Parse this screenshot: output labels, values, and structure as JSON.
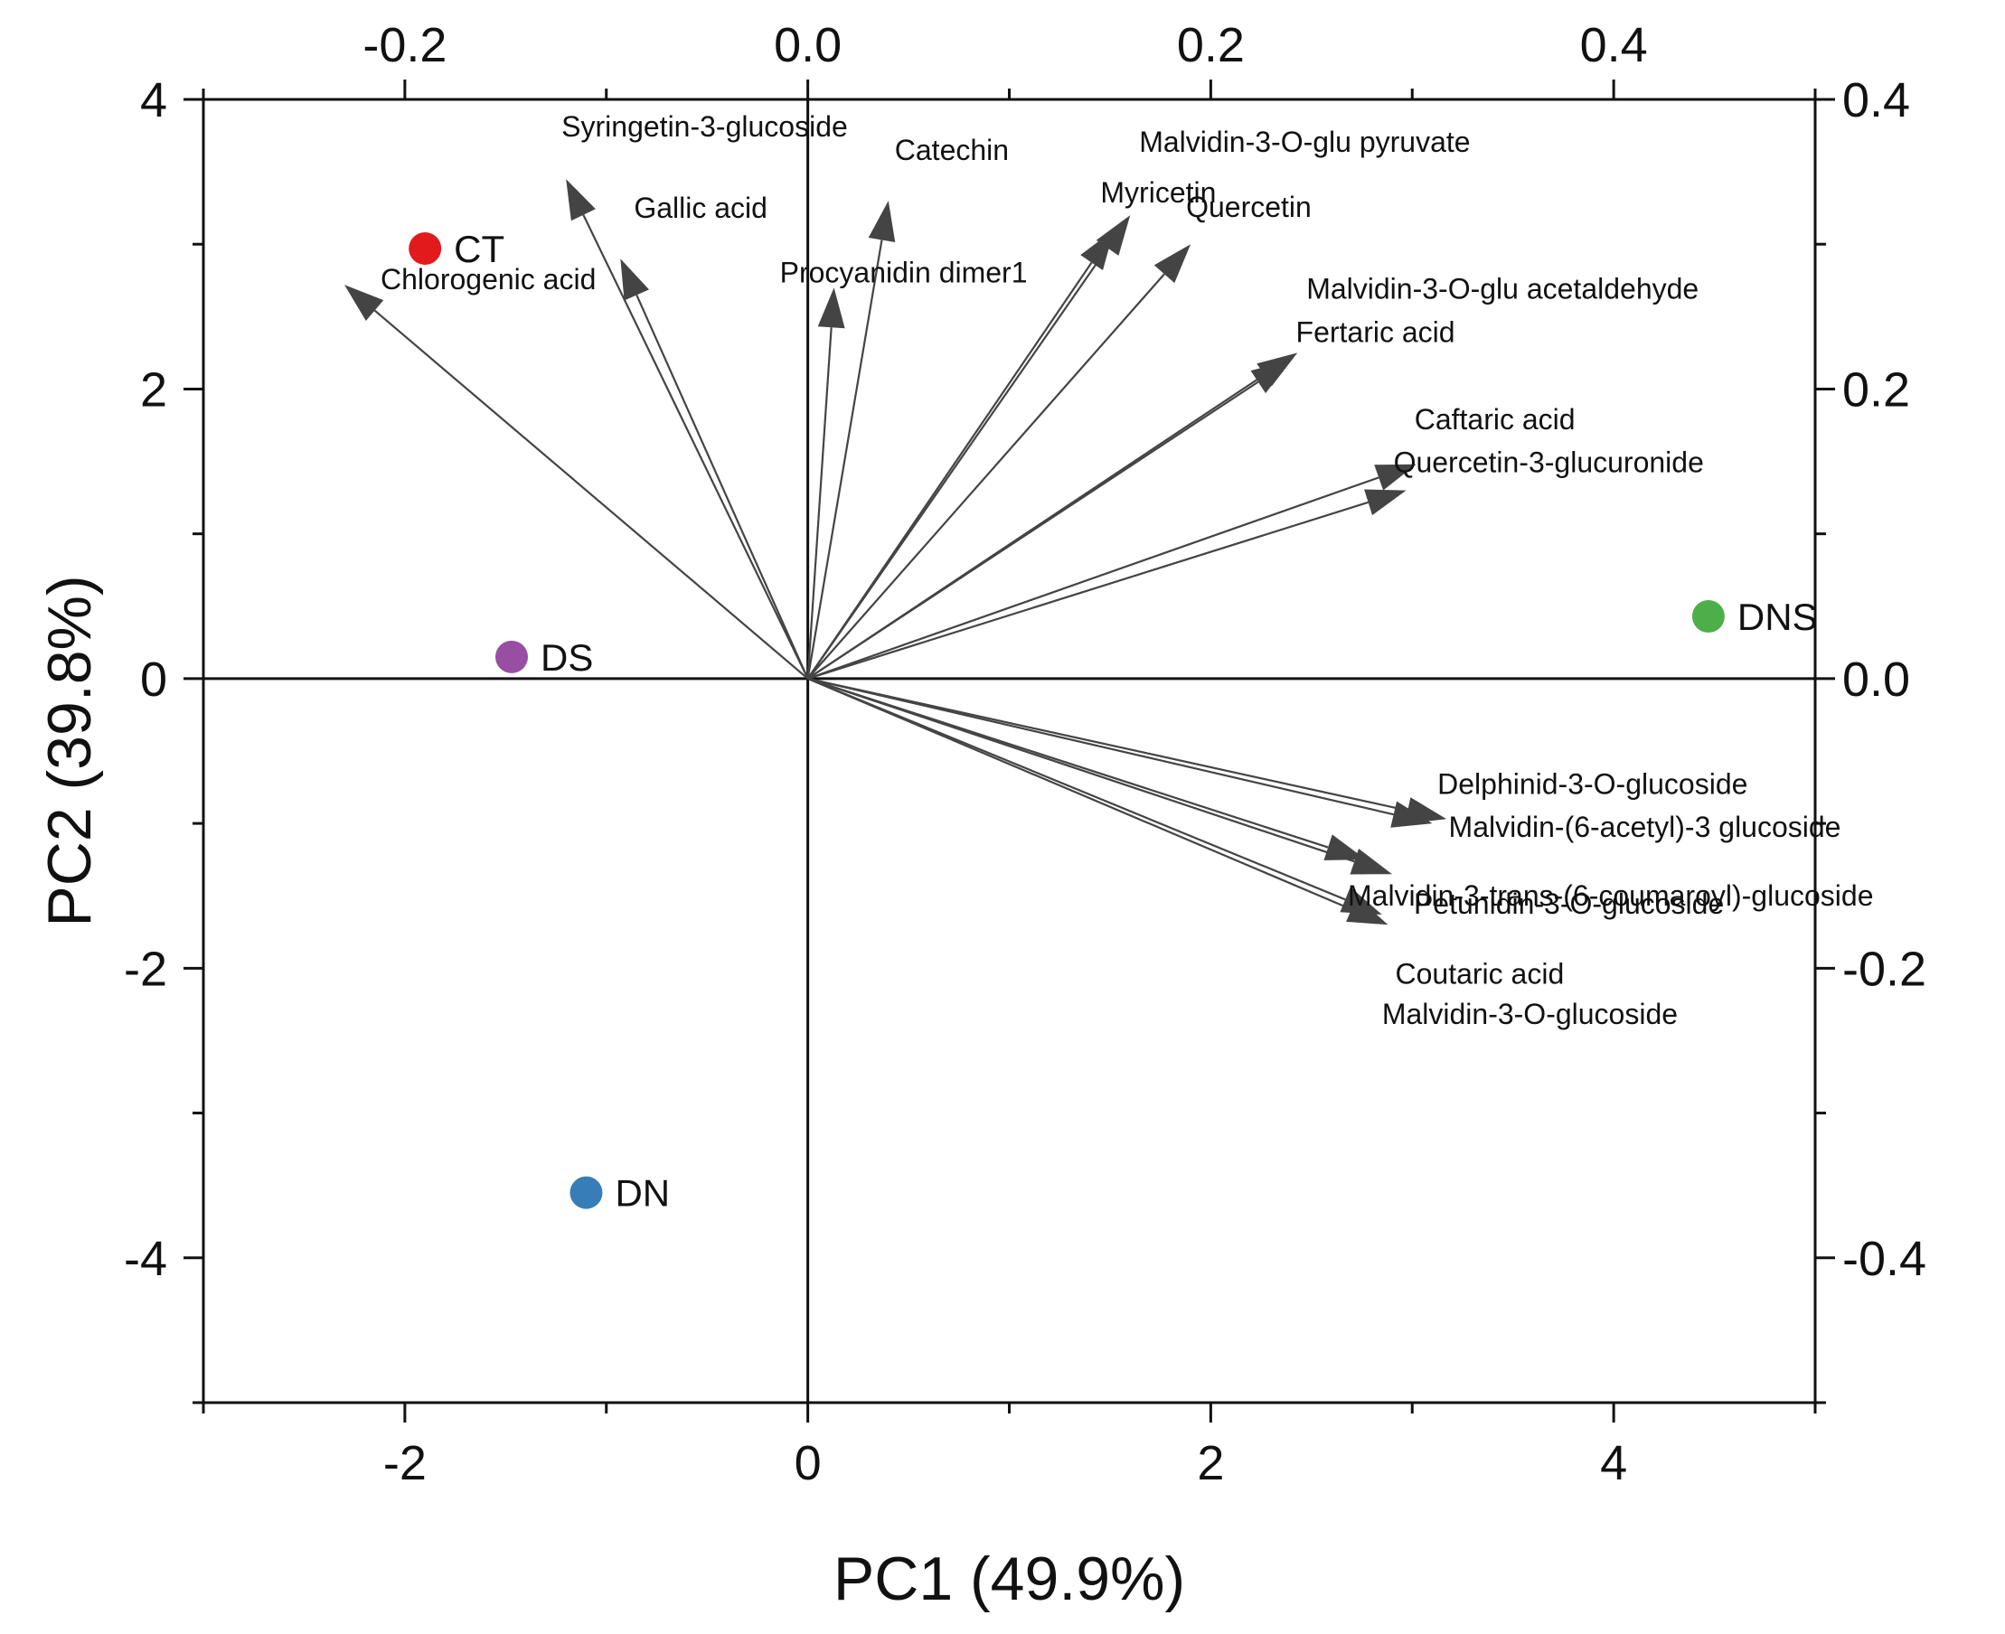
{
  "chart_data": {
    "type": "biplot",
    "title": "",
    "xlabel": "PC1 (49.9%)",
    "ylabel": "PC2 (39.8%)",
    "xlim": [
      -3,
      5
    ],
    "ylim": [
      -5,
      4
    ],
    "xticks": [
      -2,
      0,
      2,
      4
    ],
    "yticks": [
      -4,
      -2,
      0,
      2,
      4
    ],
    "x_tick_labels": [
      "-2",
      "0",
      "2",
      "4"
    ],
    "y_tick_labels": [
      "-4",
      "-2",
      "0",
      "2",
      "4"
    ],
    "top_axis": {
      "lim": [
        -0.3,
        0.5
      ],
      "ticks": [
        -0.2,
        0.0,
        0.2,
        0.4
      ],
      "tick_labels": [
        "-0.2",
        "0.0",
        "0.2",
        "0.4"
      ]
    },
    "right_axis": {
      "lim": [
        -0.5,
        0.4
      ],
      "ticks": [
        -0.4,
        -0.2,
        0.0,
        0.2,
        0.4
      ],
      "tick_labels": [
        "-0.4",
        "-0.2",
        "0.0",
        "0.2",
        "0.4"
      ]
    },
    "scores": [
      {
        "name": "CT",
        "x": -1.9,
        "y": 2.97,
        "color": "#e31a1c"
      },
      {
        "name": "DS",
        "x": -1.47,
        "y": 0.15,
        "color": "#984ea3"
      },
      {
        "name": "DNS",
        "x": 4.47,
        "y": 0.43,
        "color": "#4daf4a"
      },
      {
        "name": "DN",
        "x": -1.1,
        "y": -3.55,
        "color": "#377eb8"
      }
    ],
    "loadings": [
      {
        "name": "Chlorogenic acid",
        "x": -0.23,
        "y": 0.272
      },
      {
        "name": "Syringetin-3-glucoside",
        "x": -0.12,
        "y": 0.345
      },
      {
        "name": "Gallic acid",
        "x": -0.093,
        "y": 0.29
      },
      {
        "name": "Procyanidin dimer1",
        "x": 0.013,
        "y": 0.27
      },
      {
        "name": "Catechin",
        "x": 0.04,
        "y": 0.33
      },
      {
        "name": "Malvidin-3-O-glu pyruvate",
        "x": 0.16,
        "y": 0.32
      },
      {
        "name": "Myricetin",
        "x": 0.152,
        "y": 0.31
      },
      {
        "name": "Quercetin",
        "x": 0.19,
        "y": 0.3
      },
      {
        "name": "Malvidin-3-O-glu acetaldehyde",
        "x": 0.243,
        "y": 0.225
      },
      {
        "name": "Fertaric acid",
        "x": 0.24,
        "y": 0.22
      },
      {
        "name": "Caftaric acid",
        "x": 0.302,
        "y": 0.148
      },
      {
        "name": "Quercetin-3-glucuronide",
        "x": 0.297,
        "y": 0.13
      },
      {
        "name": "Delphinid-3-O-glucoside",
        "x": 0.317,
        "y": -0.097
      },
      {
        "name": "Malvidin-(6-acetyl)-3 glucoside",
        "x": 0.31,
        "y": -0.1
      },
      {
        "name": "Malvidin-3-trans-(6-coumaroyl)-glucoside",
        "x": 0.277,
        "y": -0.125
      },
      {
        "name": "Petunidin-3-O-glucoside",
        "x": 0.29,
        "y": -0.135
      },
      {
        "name": "Coutaric acid",
        "x": 0.288,
        "y": -0.17
      },
      {
        "name": "Malvidin-3-O-glucoside",
        "x": 0.285,
        "y": -0.163
      }
    ],
    "grid": false,
    "legend": "none"
  }
}
